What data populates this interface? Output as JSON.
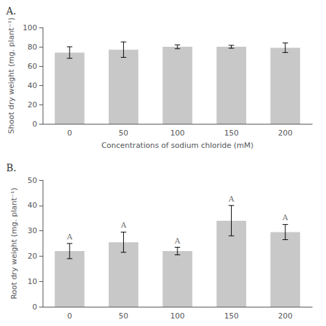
{
  "chart_data": [
    {
      "type": "bar",
      "title": "A.",
      "categories": [
        "0",
        "50",
        "100",
        "150",
        "200"
      ],
      "values": [
        74,
        77,
        80,
        80,
        79
      ],
      "errors": [
        6,
        8,
        2,
        1.5,
        5
      ],
      "color": "#c8c8c8",
      "xlabel": "Concentrations of sodium chloride (mM)",
      "ylabel": "Shoot dry weight (mg. plant⁻¹)",
      "ylim": [
        0,
        100
      ],
      "yticks": [
        0,
        20,
        40,
        60,
        80,
        100
      ],
      "grid": false
    },
    {
      "type": "bar",
      "title": "B.",
      "categories": [
        "0",
        "50",
        "100",
        "150",
        "200"
      ],
      "values": [
        22,
        25.5,
        22,
        34,
        29.5
      ],
      "errors": [
        3,
        4,
        1.5,
        6,
        3
      ],
      "color": "#c8c8c8",
      "ylabel": "Root dry weight (mg. plant⁻¹)",
      "ylim": [
        0,
        50
      ],
      "yticks": [
        0,
        10,
        20,
        30,
        40,
        50
      ],
      "grid": false,
      "annotations": [
        {
          "x": "0",
          "text": "A"
        },
        {
          "x": "50",
          "text": "A"
        },
        {
          "x": "100",
          "text": "A"
        },
        {
          "x": "150",
          "text": "A"
        },
        {
          "x": "200",
          "text": "A"
        }
      ]
    }
  ]
}
